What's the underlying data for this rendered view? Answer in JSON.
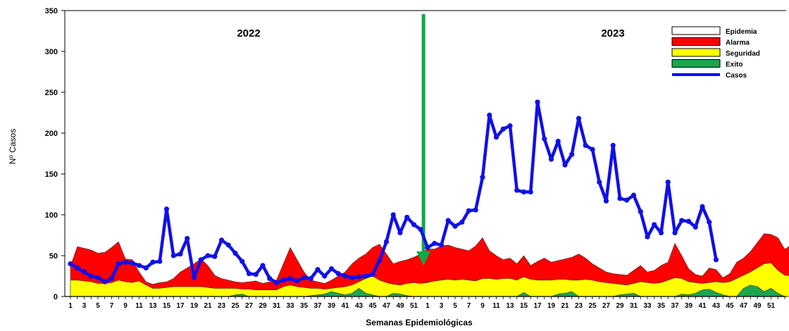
{
  "chart_data": {
    "type": "area",
    "xlabel": "Semanas Epidemiológicas",
    "ylabel": "Nº Casos",
    "ylim": [
      0,
      350
    ],
    "yticks": [
      0,
      50,
      100,
      150,
      200,
      250,
      300,
      350
    ],
    "year_labels": [
      "2022",
      "2023"
    ],
    "divider": {
      "after_index": 51,
      "color": "#0fa84a"
    },
    "xtick_labels": [
      "1",
      "3",
      "5",
      "7",
      "9",
      "11",
      "13",
      "15",
      "17",
      "19",
      "21",
      "23",
      "25",
      "27",
      "29",
      "31",
      "33",
      "35",
      "37",
      "39",
      "41",
      "43",
      "45",
      "47",
      "49",
      "51",
      "1",
      "3",
      "5",
      "7",
      "9",
      "11",
      "13",
      "15",
      "17",
      "19",
      "21",
      "23",
      "25",
      "27",
      "29",
      "31",
      "33",
      "35",
      "37",
      "39",
      "41",
      "43",
      "45",
      "47",
      "49",
      "51"
    ],
    "legend": {
      "placement": "top-right",
      "entries": [
        {
          "label": "Epidemia",
          "color": "#ffffff",
          "kind": "box"
        },
        {
          "label": "Alarma",
          "color": "#ff0000",
          "kind": "box"
        },
        {
          "label": "Seguridad",
          "color": "#ffff00",
          "kind": "box"
        },
        {
          "label": "Exito",
          "color": "#1aa64e",
          "kind": "box"
        },
        {
          "label": "Casos",
          "color": "#1010e8",
          "kind": "line"
        }
      ]
    },
    "series": [
      {
        "name": "Alarma",
        "color": "#ff0000",
        "values": [
          37,
          61,
          59,
          57,
          53,
          54,
          60,
          67,
          46,
          45,
          30,
          18,
          15,
          17,
          18,
          22,
          30,
          35,
          40,
          46,
          38,
          26,
          22,
          20,
          18,
          17,
          18,
          19,
          16,
          18,
          20,
          40,
          60,
          45,
          30,
          20,
          18,
          16,
          20,
          25,
          30,
          40,
          47,
          52,
          60,
          64,
          52,
          40,
          43,
          45,
          48,
          52,
          58,
          58,
          62,
          63,
          60,
          58,
          56,
          62,
          72,
          56,
          50,
          45,
          47,
          40,
          50,
          38,
          43,
          47,
          42,
          44,
          46,
          48,
          52,
          47,
          40,
          35,
          30,
          28,
          27,
          26,
          32,
          38,
          30,
          32,
          38,
          42,
          65,
          50,
          34,
          27,
          25,
          35,
          33,
          23,
          28,
          42,
          47,
          55,
          66,
          77,
          76,
          72,
          58,
          63,
          62,
          70,
          73,
          0
        ]
      },
      {
        "name": "Seguridad",
        "color": "#ffff00",
        "values": [
          20,
          20,
          19,
          18,
          16,
          16,
          17,
          20,
          18,
          17,
          19,
          14,
          10,
          10,
          11,
          12,
          12,
          12,
          12,
          12,
          11,
          10,
          10,
          10,
          10,
          9,
          9,
          8,
          8,
          8,
          8,
          12,
          14,
          12,
          11,
          10,
          10,
          9,
          10,
          11,
          12,
          14,
          18,
          22,
          25,
          20,
          17,
          15,
          14,
          16,
          17,
          16,
          17,
          19,
          20,
          21,
          20,
          21,
          20,
          19,
          22,
          22,
          21,
          22,
          22,
          20,
          24,
          21,
          20,
          20,
          20,
          21,
          21,
          20,
          20,
          21,
          20,
          18,
          17,
          16,
          15,
          14,
          16,
          18,
          17,
          16,
          17,
          20,
          23,
          22,
          18,
          17,
          16,
          17,
          18,
          17,
          18,
          22,
          26,
          30,
          35,
          40,
          41,
          32,
          26,
          25,
          24,
          25,
          25,
          0
        ]
      },
      {
        "name": "Exito",
        "color": "#1aa64e",
        "values": [
          0,
          0,
          0,
          0,
          0,
          0,
          0,
          0,
          0,
          0,
          0,
          0,
          0,
          0,
          0,
          0,
          0,
          0,
          0,
          0,
          0,
          0,
          0,
          0,
          2,
          3,
          0,
          0,
          0,
          0,
          0,
          0,
          0,
          0,
          0,
          1,
          2,
          3,
          6,
          4,
          2,
          4,
          10,
          4,
          2,
          0,
          0,
          4,
          3,
          1,
          0,
          0,
          0,
          0,
          0,
          0,
          0,
          0,
          0,
          0,
          0,
          0,
          0,
          0,
          0,
          0,
          5,
          0,
          0,
          0,
          0,
          3,
          4,
          6,
          0,
          0,
          0,
          0,
          0,
          0,
          2,
          3,
          4,
          0,
          0,
          0,
          0,
          0,
          0,
          3,
          2,
          4,
          8,
          9,
          5,
          2,
          0,
          0,
          10,
          14,
          12,
          6,
          10,
          4,
          0,
          0,
          0,
          0,
          0,
          0
        ]
      },
      {
        "name": "Casos",
        "color": "#1010e8",
        "values": [
          40,
          35,
          30,
          25,
          23,
          18,
          22,
          40,
          42,
          41,
          38,
          35,
          42,
          43,
          107,
          50,
          52,
          71,
          23,
          45,
          50,
          49,
          69,
          63,
          53,
          43,
          28,
          27,
          38,
          22,
          17,
          20,
          22,
          19,
          23,
          22,
          33,
          25,
          34,
          28,
          25,
          23,
          24,
          25,
          27,
          44,
          67,
          100,
          78,
          97,
          88,
          82,
          60,
          65,
          63,
          93,
          86,
          91,
          105,
          106,
          146,
          222,
          195,
          205,
          209,
          130,
          128,
          128,
          238,
          193,
          168,
          190,
          161,
          174,
          218,
          185,
          180,
          140,
          117,
          185,
          120,
          118,
          124,
          104,
          73,
          88,
          78,
          140,
          78,
          93,
          92,
          85,
          110,
          91,
          45
        ]
      }
    ]
  }
}
